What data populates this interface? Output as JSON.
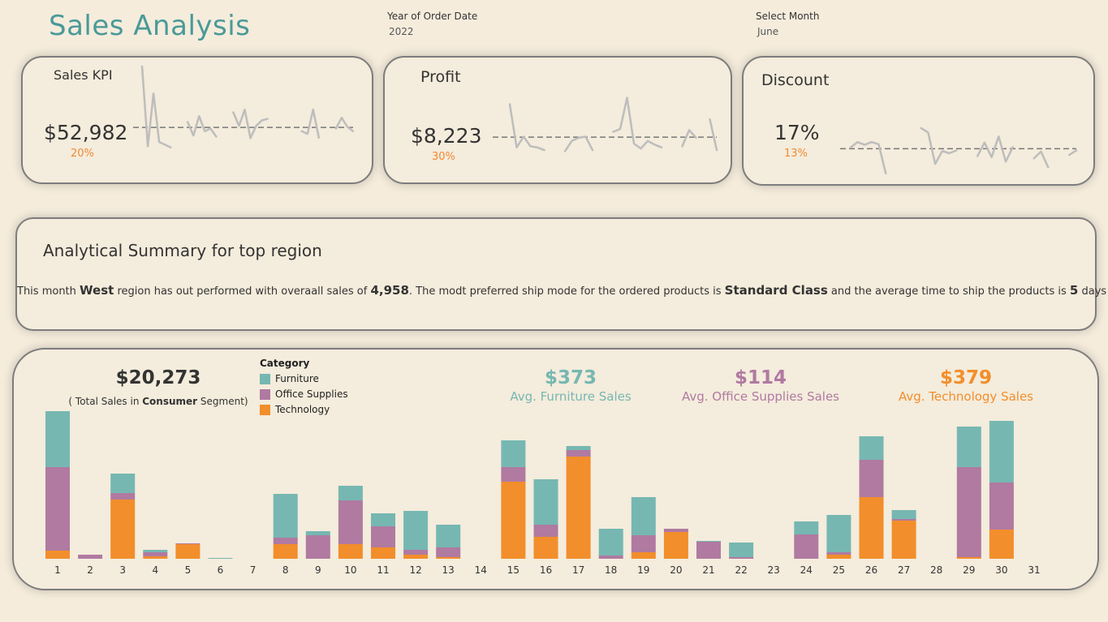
{
  "header": {
    "title": "Sales Analysis",
    "filters": [
      {
        "label": "Year of Order Date",
        "value": "2022"
      },
      {
        "label": "Select Month",
        "value": "June"
      }
    ]
  },
  "kpis": [
    {
      "name": "Sales KPI",
      "value": "$52,982",
      "change": "20%",
      "trend": [
        null,
        200,
        52,
        150,
        60,
        55,
        50,
        null,
        null,
        97,
        72,
        108,
        80,
        85,
        70,
        null,
        null,
        115,
        90,
        120,
        67,
        90,
        100,
        103,
        null,
        null,
        null,
        null,
        null,
        80,
        75,
        120,
        68,
        null,
        null,
        85,
        105,
        88,
        80
      ],
      "reference": 87
    },
    {
      "name": "Profit",
      "value": "$8,223",
      "change": "30%",
      "trend": [
        null,
        null,
        130,
        50,
        70,
        52,
        50,
        45,
        null,
        null,
        43,
        62,
        68,
        70,
        45,
        null,
        null,
        79,
        84,
        142,
        57,
        48,
        62,
        55,
        50,
        null,
        null,
        52,
        82,
        68,
        null,
        102,
        45
      ],
      "reference": 69
    },
    {
      "name": "Discount",
      "value": "17%",
      "change": "13%",
      "trend": [
        null,
        55,
        65,
        60,
        65,
        61,
        9,
        null,
        null,
        null,
        null,
        90,
        82,
        26,
        49,
        45,
        50,
        null,
        null,
        40,
        64,
        38,
        75,
        30,
        56,
        null,
        null,
        36,
        48,
        20,
        null,
        null,
        42,
        50
      ],
      "reference": 53
    }
  ],
  "summary": {
    "title": "Analytical Summary for top region",
    "text_1": "This month ",
    "region": "West",
    "text_2": " region has out performed with overaall sales of ",
    "sales": "4,958",
    "text_3": ". The modt preferred ship mode for the ordered products is ",
    "ship_mode": "Standard Class",
    "text_4": " and the average time to ship the products is ",
    "ship_days": "5",
    "text_5": " days"
  },
  "bottom": {
    "segment_total": "$20,273",
    "segment_prefix": "( Total Sales in ",
    "segment_name": "Consumer",
    "segment_suffix": " Segment)",
    "legend_title": "Category",
    "averages": [
      {
        "value": "$373",
        "label": "Avg. Furniture Sales",
        "color": "#76b7b2"
      },
      {
        "value": "$114",
        "label": "Avg. Office Supplies Sales",
        "color": "#b07aa1"
      },
      {
        "value": "$379",
        "label": "Avg. Technology Sales",
        "color": "#f28e2b"
      }
    ]
  },
  "chart_data": {
    "type": "bar",
    "stacked": true,
    "legend_title": "Category",
    "categories": [
      "1",
      "2",
      "3",
      "4",
      "5",
      "6",
      "7",
      "8",
      "9",
      "10",
      "11",
      "12",
      "13",
      "14",
      "15",
      "16",
      "17",
      "18",
      "19",
      "20",
      "21",
      "22",
      "23",
      "24",
      "25",
      "26",
      "27",
      "28",
      "29",
      "30",
      "31"
    ],
    "series": [
      {
        "name": "Technology",
        "color": "#f28e2b",
        "values": [
          10,
          0,
          73,
          3,
          18,
          0,
          0,
          18,
          0,
          18,
          14,
          5,
          2,
          0,
          95,
          27,
          126,
          0,
          8,
          33,
          0,
          0,
          0,
          0,
          5,
          76,
          47,
          0,
          2,
          36,
          0
        ]
      },
      {
        "name": "Office Supplies",
        "color": "#b07aa1",
        "values": [
          103,
          5,
          8,
          5,
          1,
          0,
          0,
          8,
          29,
          54,
          26,
          6,
          12,
          0,
          18,
          15,
          8,
          4,
          21,
          4,
          21,
          2,
          0,
          30,
          3,
          46,
          2,
          0,
          111,
          58,
          0
        ]
      },
      {
        "name": "Furniture",
        "color": "#76b7b2",
        "values": [
          69,
          0,
          24,
          3,
          0,
          1,
          0,
          54,
          5,
          18,
          16,
          48,
          28,
          0,
          33,
          56,
          5,
          33,
          47,
          0,
          1,
          18,
          0,
          16,
          46,
          29,
          11,
          0,
          50,
          76,
          0
        ]
      }
    ],
    "ylim": [
      0,
      190
    ]
  }
}
